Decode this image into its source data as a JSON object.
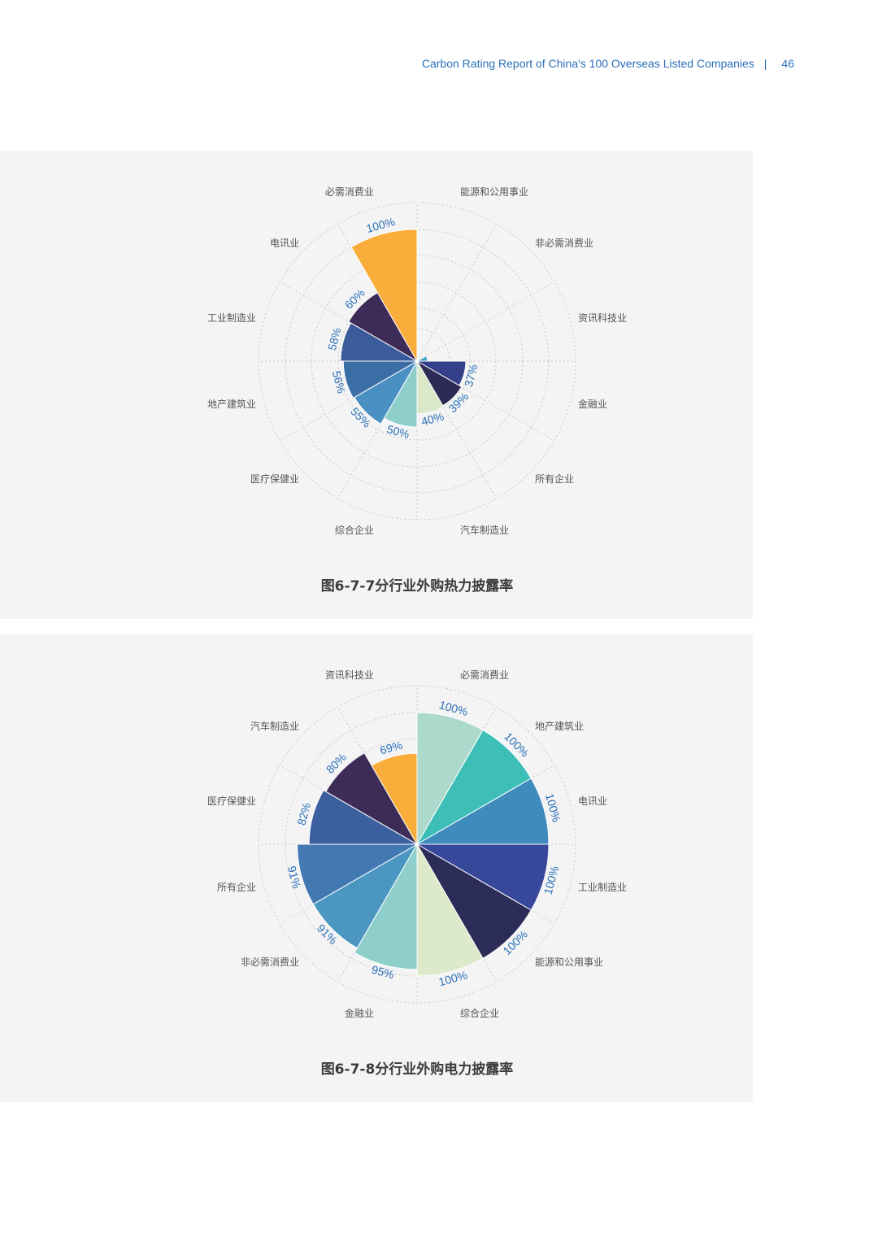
{
  "header": {
    "report_title": "Carbon Rating Report of China's 100 Overseas Listed Companies",
    "separator": "|",
    "page_number": "46"
  },
  "charts": [
    {
      "caption": "图6-7-7分行业外购热力披露率"
    },
    {
      "caption": "图6-7-8分行业外购电力披露率"
    }
  ],
  "chart_data": [
    {
      "type": "polar-bar",
      "title": "图6-7-7分行业外购热力披露率",
      "rlim": [
        0,
        100
      ],
      "grid": true,
      "categories": [
        "能源和公用事业",
        "非必需消费业",
        "资讯科技业",
        "金融业",
        "所有企业",
        "汽车制造业",
        "综合企业",
        "医疗保健业",
        "地产建筑业",
        "工业制造业",
        "电讯业",
        "必需消费业"
      ],
      "values": [
        null,
        null,
        8,
        37,
        39,
        40,
        50,
        55,
        56,
        58,
        60,
        100
      ],
      "value_labels": [
        "",
        "",
        "",
        "37%",
        "39%",
        "40%",
        "50%",
        "55%",
        "56%",
        "58%",
        "60%",
        "100%"
      ],
      "colors": [
        "#2d4d8a",
        "#33407a",
        "#4aa5c0",
        "#34418a",
        "#2d2a55",
        "#d9e8c8",
        "#8ecfcc",
        "#4a8fc2",
        "#3c6ea6",
        "#3b5b9a",
        "#3d2c58",
        "#f9ad3b"
      ]
    },
    {
      "type": "polar-bar",
      "title": "图6-7-8分行业外购电力披露率",
      "rlim": [
        0,
        100
      ],
      "grid": true,
      "categories": [
        "必需消费业",
        "地产建筑业",
        "电讯业",
        "工业制造业",
        "能源和公用事业",
        "综合企业",
        "金融业",
        "非必需消费业",
        "所有企业",
        "医疗保健业",
        "汽车制造业",
        "资讯科技业"
      ],
      "values": [
        100,
        100,
        100,
        100,
        100,
        100,
        95,
        91,
        91,
        82,
        80,
        69
      ],
      "value_labels": [
        "100%",
        "100%",
        "100%",
        "100%",
        "100%",
        "100%",
        "95%",
        "91%",
        "91%",
        "82%",
        "80%",
        "69%"
      ],
      "colors": [
        "#acd9cc",
        "#3dbfb8",
        "#3f8bbd",
        "#37479a",
        "#2c2c58",
        "#dde9cb",
        "#8ecfcc",
        "#4b97c1",
        "#4279b3",
        "#3c5fa0",
        "#3c2c57",
        "#f9ad3b"
      ]
    }
  ]
}
